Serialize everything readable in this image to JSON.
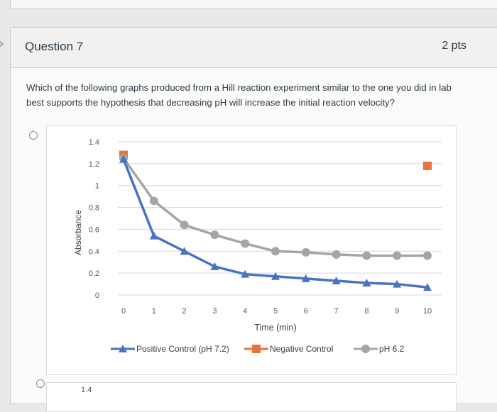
{
  "question": {
    "title": "Question 7",
    "points": "2 pts",
    "text": "Which of the following graphs produced from a Hill reaction experiment similar to the one you did in lab best supports the hypothesis that decreasing pH will increase the initial reaction velocity?"
  },
  "answers": [
    {
      "type": "graph-option"
    },
    {
      "type": "graph-option",
      "partial_tick": "1.4"
    }
  ],
  "chart_data": {
    "type": "line",
    "xlabel": "Time (min)",
    "ylabel": "Absorbance",
    "x": [
      0,
      1,
      2,
      3,
      4,
      5,
      6,
      7,
      8,
      9,
      10
    ],
    "xticks": [
      "0",
      "1",
      "2",
      "3",
      "4",
      "5",
      "6",
      "7",
      "8",
      "9",
      "10"
    ],
    "yticks": [
      "0",
      "0.2",
      "0.4",
      "0.6",
      "0.8",
      "1",
      "1.2",
      "1.4"
    ],
    "ylim": [
      0,
      1.4
    ],
    "xlim": [
      0,
      10
    ],
    "grid": true,
    "legend_position": "bottom",
    "series": [
      {
        "name": "Positive Control (pH 7.2)",
        "color": "#4a72c4",
        "marker": "triangle",
        "x": [
          0,
          1,
          2,
          3,
          4,
          5,
          6,
          7,
          8,
          9,
          10
        ],
        "values": [
          1.24,
          0.54,
          0.4,
          0.26,
          0.19,
          0.17,
          0.15,
          0.13,
          0.11,
          0.1,
          0.07
        ]
      },
      {
        "name": "Negative Control",
        "color": "#e8743b",
        "marker": "square",
        "x": [
          0,
          10
        ],
        "values": [
          1.28,
          1.18
        ]
      },
      {
        "name": "pH 6.2",
        "color": "#a5a5a5",
        "marker": "circle",
        "x": [
          0,
          1,
          2,
          3,
          4,
          5,
          6,
          7,
          8,
          9,
          10
        ],
        "values": [
          1.25,
          0.86,
          0.64,
          0.55,
          0.47,
          0.4,
          0.39,
          0.37,
          0.36,
          0.36,
          0.36
        ]
      }
    ]
  }
}
